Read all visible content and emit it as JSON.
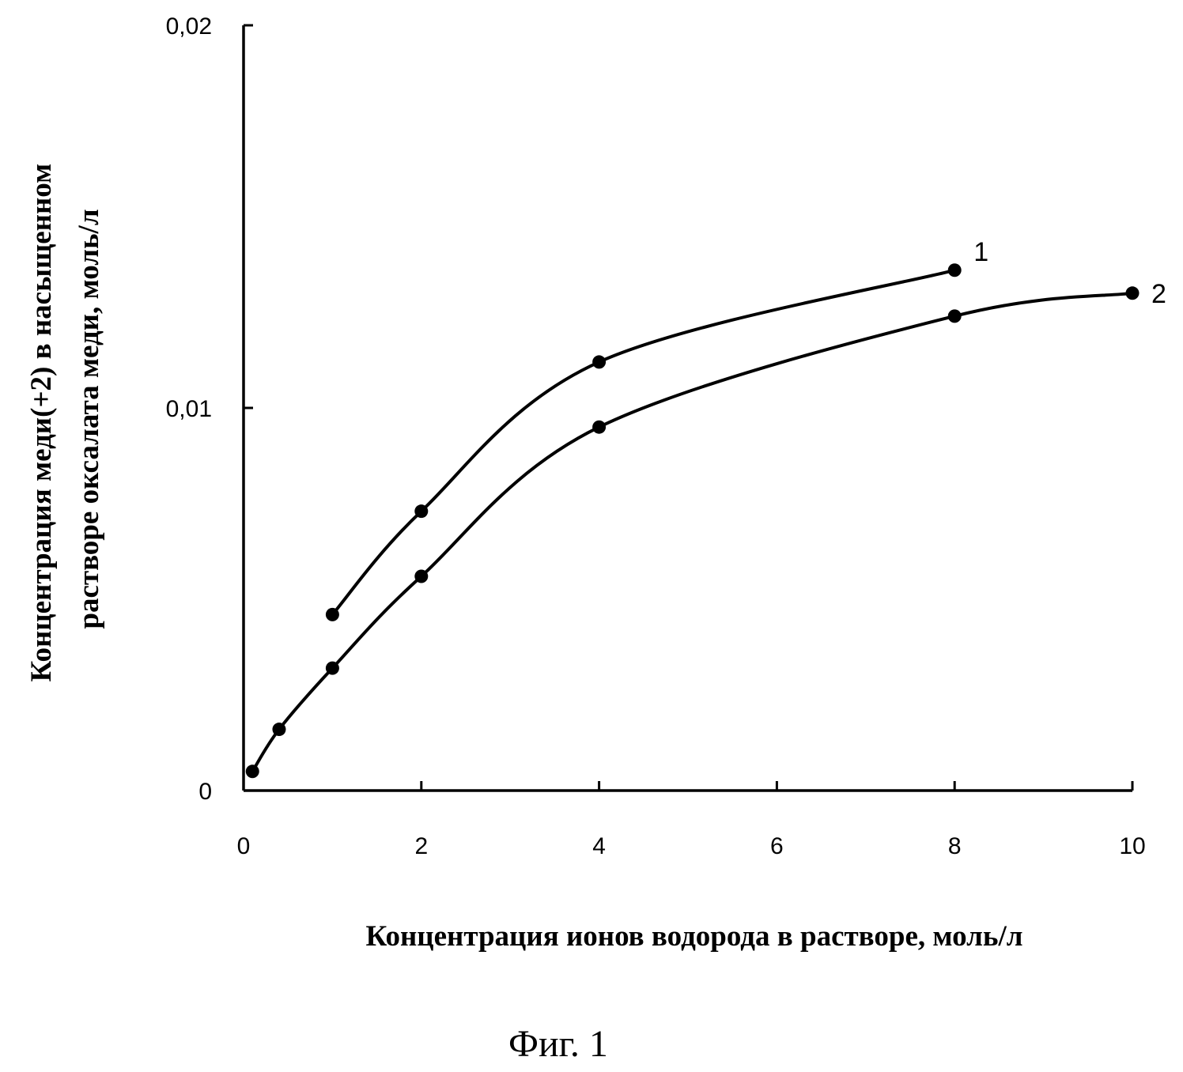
{
  "chart_data": {
    "type": "line",
    "xlabel": "Концентрация ионов водорода в растворе, моль/л",
    "ylabel_lines": [
      "Концентрация меди(+2) в насыщенном",
      "растворе  оксалата  меди, моль/л"
    ],
    "x_ticks": [
      0,
      2,
      4,
      6,
      8,
      10
    ],
    "x_tick_labels": [
      "0",
      "2",
      "4",
      "6",
      "8",
      "10"
    ],
    "y_ticks": [
      0,
      0.01,
      0.02
    ],
    "y_tick_labels": [
      "0",
      "0,01",
      "0,02"
    ],
    "xlim": [
      0,
      10
    ],
    "ylim": [
      0,
      0.02
    ],
    "grid": false,
    "series": [
      {
        "name": "1",
        "x": [
          1,
          2,
          4,
          8
        ],
        "y": [
          0.0046,
          0.0073,
          0.0112,
          0.0136
        ]
      },
      {
        "name": "2",
        "x": [
          0.1,
          0.4,
          1,
          2,
          4,
          8,
          10
        ],
        "y": [
          0.0005,
          0.0016,
          0.0032,
          0.0056,
          0.0095,
          0.0124,
          0.013
        ]
      }
    ]
  },
  "caption": "Фиг. 1"
}
